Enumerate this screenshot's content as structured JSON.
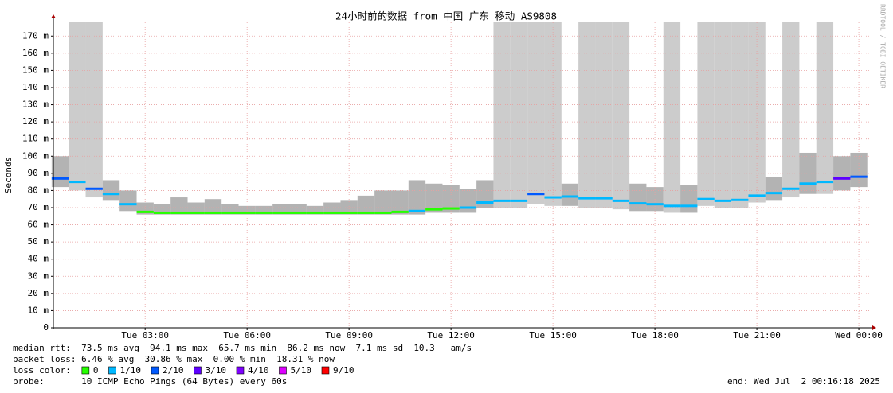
{
  "chart_data": {
    "type": "smokeping",
    "title": "24小时前的数据 from 中国 广东 移动 AS9808",
    "ylabel": "Seconds",
    "watermark": "RRDTOOL / TOBI OETIKER",
    "grid": true,
    "xlim": [
      0.3,
      24.35
    ],
    "ylim": [
      0,
      0.178
    ],
    "xticks": [
      {
        "value": 3,
        "label": "Tue 03:00"
      },
      {
        "value": 6,
        "label": "Tue 06:00"
      },
      {
        "value": 9,
        "label": "Tue 09:00"
      },
      {
        "value": 12,
        "label": "Tue 12:00"
      },
      {
        "value": 15,
        "label": "Tue 15:00"
      },
      {
        "value": 18,
        "label": "Tue 18:00"
      },
      {
        "value": 21,
        "label": "Tue 21:00"
      },
      {
        "value": 24,
        "label": "Wed 00:00"
      }
    ],
    "yticks": [
      0,
      {
        "value": 0.01,
        "label": "10 m"
      },
      {
        "value": 0.02,
        "label": "20 m"
      },
      {
        "value": 0.03,
        "label": "30 m"
      },
      {
        "value": 0.04,
        "label": "40 m"
      },
      {
        "value": 0.05,
        "label": "50 m"
      },
      {
        "value": 0.06,
        "label": "60 m"
      },
      {
        "value": 0.07,
        "label": "70 m"
      },
      {
        "value": 0.08,
        "label": "80 m"
      },
      {
        "value": 0.09,
        "label": "90 m"
      },
      {
        "value": 0.1,
        "label": "100 m"
      },
      {
        "value": 0.11,
        "label": "110 m"
      },
      {
        "value": 0.12,
        "label": "120 m"
      },
      {
        "value": 0.13,
        "label": "130 m"
      },
      {
        "value": 0.14,
        "label": "140 m"
      },
      {
        "value": 0.15,
        "label": "150 m"
      },
      {
        "value": 0.16,
        "label": "160 m"
      },
      {
        "value": 0.17,
        "label": "170 m"
      }
    ],
    "x": [
      0.5,
      1,
      1.5,
      2,
      2.5,
      3,
      3.5,
      4,
      4.5,
      5,
      5.5,
      6,
      6.5,
      7,
      7.5,
      8,
      8.5,
      9,
      9.5,
      10,
      10.5,
      11,
      11.5,
      12,
      12.5,
      13,
      13.5,
      14,
      14.5,
      15,
      15.5,
      16,
      16.5,
      17,
      17.5,
      18,
      18.5,
      19,
      19.5,
      20,
      20.5,
      21,
      21.5,
      22,
      22.5,
      23,
      23.5,
      24
    ],
    "median": [
      0.087,
      0.085,
      0.081,
      0.078,
      0.072,
      0.0675,
      0.067,
      0.067,
      0.067,
      0.067,
      0.067,
      0.067,
      0.067,
      0.067,
      0.067,
      0.067,
      0.067,
      0.067,
      0.067,
      0.067,
      0.0675,
      0.068,
      0.069,
      0.0695,
      0.07,
      0.073,
      0.074,
      0.074,
      0.078,
      0.076,
      0.0765,
      0.0755,
      0.0755,
      0.074,
      0.0725,
      0.072,
      0.071,
      0.071,
      0.075,
      0.074,
      0.0745,
      0.077,
      0.0785,
      0.081,
      0.084,
      0.085,
      0.087,
      0.088
    ],
    "smoke_min": [
      0.082,
      0.08,
      0.076,
      0.074,
      0.068,
      0.066,
      0.066,
      0.066,
      0.066,
      0.066,
      0.066,
      0.066,
      0.066,
      0.066,
      0.066,
      0.066,
      0.066,
      0.066,
      0.066,
      0.066,
      0.066,
      0.066,
      0.067,
      0.067,
      0.067,
      0.07,
      0.07,
      0.07,
      0.072,
      0.071,
      0.071,
      0.07,
      0.07,
      0.069,
      0.068,
      0.068,
      0.067,
      0.067,
      0.071,
      0.07,
      0.07,
      0.073,
      0.074,
      0.076,
      0.078,
      0.078,
      0.08,
      0.082
    ],
    "smoke_max": [
      0.1,
      0.178,
      0.178,
      0.086,
      0.08,
      0.073,
      0.072,
      0.076,
      0.073,
      0.075,
      0.072,
      0.071,
      0.071,
      0.072,
      0.072,
      0.071,
      0.073,
      0.074,
      0.077,
      0.08,
      0.08,
      0.086,
      0.084,
      0.083,
      0.081,
      0.086,
      0.178,
      0.178,
      0.178,
      0.178,
      0.084,
      0.178,
      0.178,
      0.178,
      0.084,
      0.082,
      0.178,
      0.083,
      0.178,
      0.178,
      0.178,
      0.178,
      0.088,
      0.178,
      0.102,
      0.178,
      0.1,
      0.102
    ],
    "loss": [
      2,
      1,
      2,
      1,
      1,
      0,
      0,
      0,
      0,
      0,
      0,
      0,
      0,
      0,
      0,
      0,
      0,
      0,
      0,
      0,
      0,
      1,
      0,
      0,
      1,
      1,
      1,
      1,
      2,
      1,
      1,
      1,
      1,
      1,
      1,
      1,
      1,
      1,
      1,
      1,
      1,
      1,
      1,
      1,
      1,
      1,
      3,
      2
    ],
    "stats": [
      "median rtt:  73.5 ms avg  94.1 ms max  65.7 ms min  86.2 ms now  7.1 ms sd  10.3   am/s",
      "packet loss: 6.46 % avg  30.86 % max  0.00 % min  18.31 % now"
    ],
    "legend": {
      "title": "loss color:",
      "items": [
        {
          "value": 0,
          "label": "0",
          "color": "#26ff00"
        },
        {
          "value": 1,
          "label": "1/10",
          "color": "#00b8ff"
        },
        {
          "value": 2,
          "label": "2/10",
          "color": "#0059ff"
        },
        {
          "value": 3,
          "label": "3/10",
          "color": "#5e00ff"
        },
        {
          "value": 4,
          "label": "4/10",
          "color": "#7e00ff"
        },
        {
          "value": 5,
          "label": "5/10",
          "color": "#dd00ff"
        },
        {
          "value": 9,
          "label": "9/10",
          "color": "#ff0000"
        }
      ]
    },
    "probe": "probe:       10 ICMP Echo Pings (64 Bytes) every 60s",
    "end": "end: Wed Jul  2 00:16:18 2025"
  }
}
